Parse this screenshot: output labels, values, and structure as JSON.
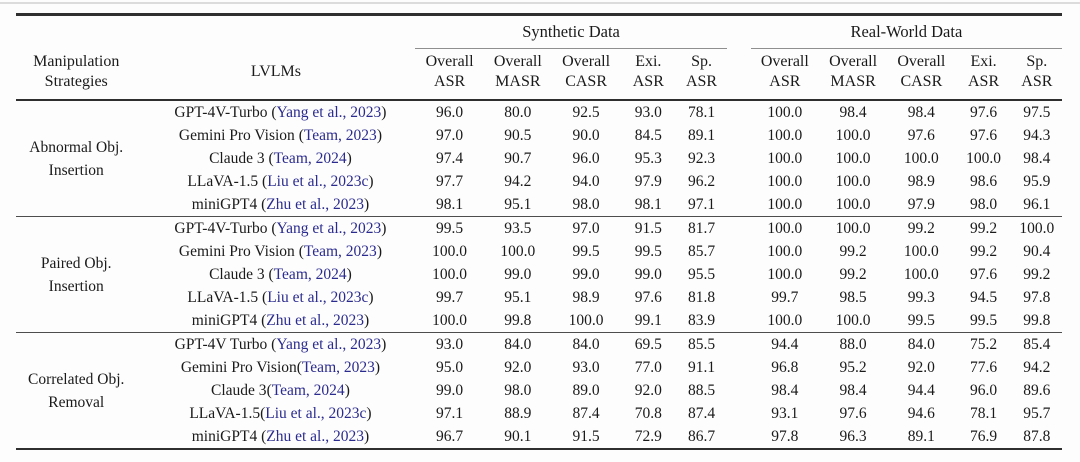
{
  "punct": {
    "open": "(",
    "close": ")"
  },
  "colors": {
    "text": "#1a1a1a",
    "cite": "#2b2b8f",
    "rule_heavy": "#2f2f2f",
    "rule_light": "#8f8f8f"
  },
  "header": {
    "col1_lines": [
      "Manipulation",
      "Strategies"
    ],
    "col2_label": "LVLMs",
    "span_groups": [
      {
        "label": "Synthetic Data"
      },
      {
        "label": "Real-World Data"
      }
    ],
    "metric_cols": [
      {
        "line1": "Overall",
        "line2": "ASR"
      },
      {
        "line1": "Overall",
        "line2": "MASR"
      },
      {
        "line1": "Overall",
        "line2": "CASR"
      },
      {
        "line1": "Exi.",
        "line2": "ASR"
      },
      {
        "line1": "Sp.",
        "line2": "ASR"
      }
    ]
  },
  "groups": [
    {
      "strategy_lines": [
        "Abnormal Obj.",
        "Insertion"
      ],
      "rows": [
        {
          "model": "GPT-4V-Turbo ",
          "cite": "Yang et al., 2023",
          "synthetic": [
            "96.0",
            "80.0",
            "92.5",
            "93.0",
            "78.1"
          ],
          "real": [
            "100.0",
            "98.4",
            "98.4",
            "97.6",
            "97.5"
          ]
        },
        {
          "model": "Gemini Pro Vision ",
          "cite": "Team, 2023",
          "synthetic": [
            "97.0",
            "90.5",
            "90.0",
            "84.5",
            "89.1"
          ],
          "real": [
            "100.0",
            "100.0",
            "97.6",
            "97.6",
            "94.3"
          ]
        },
        {
          "model": "Claude 3 ",
          "cite": "Team, 2024",
          "synthetic": [
            "97.4",
            "90.7",
            "96.0",
            "95.3",
            "92.3"
          ],
          "real": [
            "100.0",
            "100.0",
            "100.0",
            "100.0",
            "98.4"
          ]
        },
        {
          "model": "LLaVA-1.5 ",
          "cite": "Liu et al., 2023c",
          "synthetic": [
            "97.7",
            "94.2",
            "94.0",
            "97.9",
            "96.2"
          ],
          "real": [
            "100.0",
            "100.0",
            "98.9",
            "98.6",
            "95.9"
          ]
        },
        {
          "model": "miniGPT4 ",
          "cite": "Zhu et al., 2023",
          "synthetic": [
            "98.1",
            "95.1",
            "98.0",
            "98.1",
            "97.1"
          ],
          "real": [
            "100.0",
            "100.0",
            "97.9",
            "98.0",
            "96.1"
          ]
        }
      ]
    },
    {
      "strategy_lines": [
        "Paired Obj.",
        "Insertion"
      ],
      "rows": [
        {
          "model": "GPT-4V-Turbo ",
          "cite": "Yang et al., 2023",
          "synthetic": [
            "99.5",
            "93.5",
            "97.0",
            "91.5",
            "81.7"
          ],
          "real": [
            "100.0",
            "100.0",
            "99.2",
            "99.2",
            "100.0"
          ]
        },
        {
          "model": "Gemini Pro Vision ",
          "cite": "Team, 2023",
          "synthetic": [
            "100.0",
            "100.0",
            "99.5",
            "99.5",
            "85.7"
          ],
          "real": [
            "100.0",
            "99.2",
            "100.0",
            "99.2",
            "90.4"
          ]
        },
        {
          "model": "Claude 3 ",
          "cite": "Team, 2024",
          "synthetic": [
            "100.0",
            "99.0",
            "99.0",
            "99.0",
            "95.5"
          ],
          "real": [
            "100.0",
            "99.2",
            "100.0",
            "97.6",
            "99.2"
          ]
        },
        {
          "model": "LLaVA-1.5 ",
          "cite": "Liu et al., 2023c",
          "synthetic": [
            "99.7",
            "95.1",
            "98.9",
            "97.6",
            "81.8"
          ],
          "real": [
            "99.7",
            "98.5",
            "99.3",
            "94.5",
            "97.8"
          ]
        },
        {
          "model": "miniGPT4 ",
          "cite": "Zhu et al., 2023",
          "synthetic": [
            "100.0",
            "99.8",
            "100.0",
            "99.1",
            "83.9"
          ],
          "real": [
            "100.0",
            "100.0",
            "99.5",
            "99.5",
            "99.8"
          ]
        }
      ]
    },
    {
      "strategy_lines": [
        "Correlated Obj.",
        "Removal"
      ],
      "rows": [
        {
          "model": "GPT-4V Turbo ",
          "cite": "Yang et al., 2023",
          "synthetic": [
            "93.0",
            "84.0",
            "84.0",
            "69.5",
            "85.5"
          ],
          "real": [
            "94.4",
            "88.0",
            "84.0",
            "75.2",
            "85.4"
          ]
        },
        {
          "model": "Gemini Pro Vision",
          "cite": "Team, 2023",
          "synthetic": [
            "95.0",
            "92.0",
            "93.0",
            "77.0",
            "91.1"
          ],
          "real": [
            "96.8",
            "95.2",
            "92.0",
            "77.6",
            "94.2"
          ]
        },
        {
          "model": "Claude 3",
          "cite": "Team, 2024",
          "synthetic": [
            "99.0",
            "98.0",
            "89.0",
            "92.0",
            "88.5"
          ],
          "real": [
            "98.4",
            "98.4",
            "94.4",
            "96.0",
            "89.6"
          ]
        },
        {
          "model": "LLaVA-1.5",
          "cite": "Liu et al., 2023c",
          "synthetic": [
            "97.1",
            "88.9",
            "87.4",
            "70.8",
            "87.4"
          ],
          "real": [
            "93.1",
            "97.6",
            "94.6",
            "78.1",
            "95.7"
          ]
        },
        {
          "model": "miniGPT4 ",
          "cite": "Zhu et al., 2023",
          "synthetic": [
            "96.7",
            "90.1",
            "91.5",
            "72.9",
            "86.7"
          ],
          "real": [
            "97.8",
            "96.3",
            "89.1",
            "76.9",
            "87.8"
          ]
        }
      ]
    }
  ]
}
